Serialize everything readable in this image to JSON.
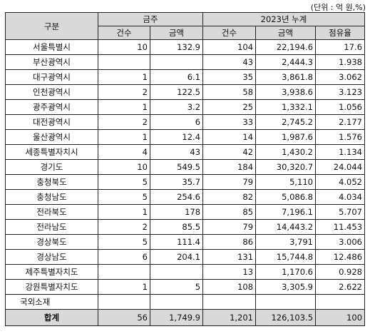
{
  "unit_note": "(단위 : 억 원,%)",
  "header": {
    "region": "구분",
    "week_group": "금주",
    "cum_group": "2023년 누계",
    "week_cols": [
      "건수",
      "금액"
    ],
    "cum_cols": [
      "건수",
      "금액",
      "점유율"
    ]
  },
  "rows": [
    {
      "region": "서울특별시",
      "w_count": "10",
      "w_amount": "132.9",
      "c_count": "104",
      "c_amount": "22,194.6",
      "share": "17.6"
    },
    {
      "region": "부산광역시",
      "w_count": "",
      "w_amount": "",
      "c_count": "43",
      "c_amount": "2,444.3",
      "share": "1.938"
    },
    {
      "region": "대구광역시",
      "w_count": "1",
      "w_amount": "6.1",
      "c_count": "35",
      "c_amount": "3,861.8",
      "share": "3.062"
    },
    {
      "region": "인천광역시",
      "w_count": "2",
      "w_amount": "122.5",
      "c_count": "58",
      "c_amount": "3,938.6",
      "share": "3.123"
    },
    {
      "region": "광주광역시",
      "w_count": "1",
      "w_amount": "3.2",
      "c_count": "25",
      "c_amount": "1,332.1",
      "share": "1.056"
    },
    {
      "region": "대전광역시",
      "w_count": "2",
      "w_amount": "6",
      "c_count": "33",
      "c_amount": "2,745.2",
      "share": "2.177"
    },
    {
      "region": "울산광역시",
      "w_count": "1",
      "w_amount": "12.4",
      "c_count": "14",
      "c_amount": "1,987.6",
      "share": "1.576"
    },
    {
      "region": "세종특별자치시",
      "w_count": "4",
      "w_amount": "43",
      "c_count": "42",
      "c_amount": "1,430.2",
      "share": "1.134"
    },
    {
      "region": "경기도",
      "w_count": "10",
      "w_amount": "549.5",
      "c_count": "184",
      "c_amount": "30,320.7",
      "share": "24.044"
    },
    {
      "region": "충청북도",
      "w_count": "5",
      "w_amount": "35.7",
      "c_count": "79",
      "c_amount": "5,110",
      "share": "4.052"
    },
    {
      "region": "충청남도",
      "w_count": "5",
      "w_amount": "254.6",
      "c_count": "82",
      "c_amount": "5,086.8",
      "share": "4.034"
    },
    {
      "region": "전라북도",
      "w_count": "1",
      "w_amount": "178",
      "c_count": "85",
      "c_amount": "7,196.1",
      "share": "5.707"
    },
    {
      "region": "전라남도",
      "w_count": "2",
      "w_amount": "85.5",
      "c_count": "79",
      "c_amount": "14,443.2",
      "share": "11.453"
    },
    {
      "region": "경상북도",
      "w_count": "5",
      "w_amount": "111.4",
      "c_count": "86",
      "c_amount": "3,791",
      "share": "3.006"
    },
    {
      "region": "경상남도",
      "w_count": "6",
      "w_amount": "204.1",
      "c_count": "131",
      "c_amount": "15,744.8",
      "share": "12.486"
    },
    {
      "region": "제주특별자치도",
      "w_count": "",
      "w_amount": "",
      "c_count": "13",
      "c_amount": "1,170.6",
      "share": "0.928"
    },
    {
      "region": "강원특별자치도",
      "w_count": "1",
      "w_amount": "5",
      "c_count": "108",
      "c_amount": "3,305.9",
      "share": "2.622"
    },
    {
      "region": "국외소재",
      "w_count": "",
      "w_amount": "",
      "c_count": "",
      "c_amount": "",
      "share": ""
    }
  ],
  "total": {
    "region": "합계",
    "w_count": "56",
    "w_amount": "1,749.9",
    "c_count": "1,201",
    "c_amount": "126,103.5",
    "share": "100"
  }
}
